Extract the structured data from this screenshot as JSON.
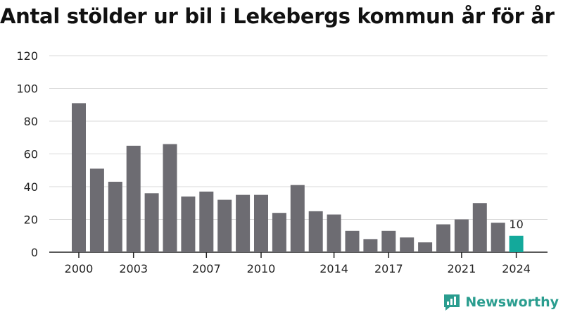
{
  "title": "Antal stölder ur bil i Lekebergs kommun år för år",
  "brand": {
    "name": "Newsworthy",
    "icon": "newsworthy-logo-icon",
    "color": "#2a9d8f"
  },
  "colors": {
    "bar": "#6d6c72",
    "highlight": "#13a99b",
    "grid": "#d9d9d9",
    "axis": "#222222"
  },
  "chart_data": {
    "type": "bar",
    "title": "Antal stölder ur bil i Lekebergs kommun år för år",
    "xlabel": "",
    "ylabel": "",
    "ylim": [
      0,
      120
    ],
    "yticks": [
      "0",
      "20",
      "40",
      "60",
      "80",
      "100",
      "120"
    ],
    "grid": true,
    "legend": "none",
    "categories": [
      "2000",
      "2001",
      "2002",
      "2003",
      "2004",
      "2005",
      "2006",
      "2007",
      "2008",
      "2009",
      "2010",
      "2011",
      "2012",
      "2013",
      "2014",
      "2015",
      "2016",
      "2017",
      "2018",
      "2019",
      "2020",
      "2021",
      "2022",
      "2023",
      "2024"
    ],
    "values": [
      91,
      51,
      43,
      65,
      36,
      66,
      34,
      37,
      32,
      35,
      35,
      24,
      41,
      25,
      23,
      13,
      8,
      13,
      9,
      6,
      17,
      20,
      30,
      18,
      10
    ],
    "xtick_labels": [
      "2000",
      "2003",
      "2007",
      "2010",
      "2014",
      "2017",
      "2021",
      "2024"
    ],
    "highlight": {
      "category": "2024",
      "label": "10"
    }
  }
}
